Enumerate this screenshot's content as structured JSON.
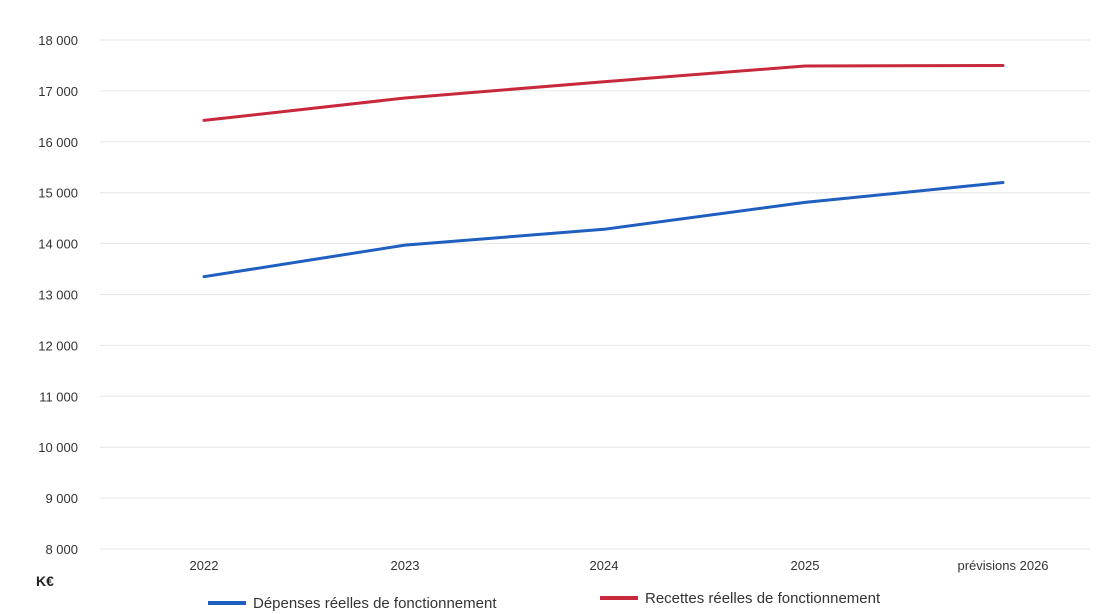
{
  "chart_data": {
    "type": "line",
    "categories": [
      "2022",
      "2023",
      "2024",
      "2025",
      "prévisions 2026"
    ],
    "unit_label": "K€",
    "y_ticks": [
      "18 000",
      "17 000",
      "16 000",
      "15 000",
      "14 000",
      "13 000",
      "12 000",
      "11 000",
      "10 000",
      "9 000",
      "8 000"
    ],
    "ylim": [
      8000,
      18000
    ],
    "grid": true,
    "legend_position": "bottom",
    "series": [
      {
        "name": "Dépenses réelles de fonctionnement",
        "color": "#1f5fbf",
        "values": [
          13350,
          13970,
          14280,
          14810,
          15200
        ]
      },
      {
        "name": "Recettes réelles de fonctionnement",
        "color": "#c8283c",
        "values": [
          16420,
          16860,
          17180,
          17490,
          17500
        ]
      }
    ]
  }
}
